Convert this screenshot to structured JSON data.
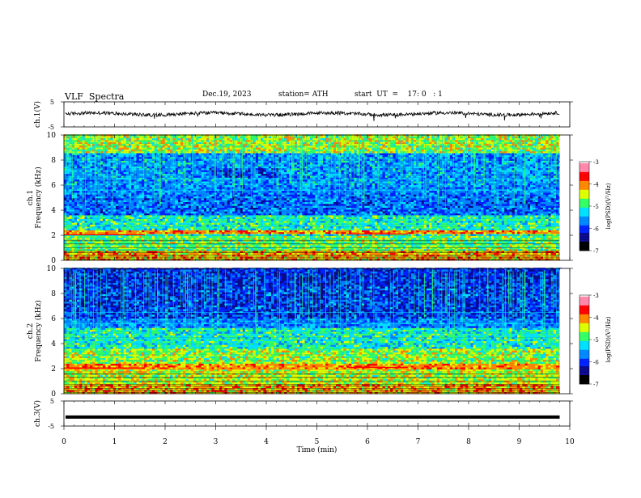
{
  "header": {
    "title": "VLF  Spectra",
    "date": "Dec.19, 2023",
    "station": "station= ATH",
    "start_ut": "start  UT  =    17: 0   : 1"
  },
  "colors": {
    "colormap": [
      "#000000",
      "#0a0a8c",
      "#0022ff",
      "#0088ff",
      "#00e0ff",
      "#33ff66",
      "#ddff00",
      "#ff8800",
      "#ff0000",
      "#ff88aa",
      "#ffffff"
    ]
  },
  "chart_data": [
    {
      "type": "line",
      "panel": "ch1-waveform",
      "ylabel": "ch.1(V)",
      "yticks": [
        "5",
        "-5"
      ],
      "ylim": [
        -5,
        5
      ],
      "xlim": [
        0,
        10
      ],
      "series": [
        {
          "approx_level_V": 0.2,
          "amplitude_V": 1.5,
          "extent_min": 9.8
        }
      ]
    },
    {
      "type": "heatmap",
      "panel": "ch1-spectrogram",
      "ylabel": "ch.1\nFrequency (kHz)",
      "ylabel_lines": [
        "ch.1",
        "Frequency  (kHz)"
      ],
      "yticks": [
        "0",
        "2",
        "4",
        "6",
        "8",
        "10"
      ],
      "ylim": [
        0,
        10
      ],
      "xlim": [
        0,
        10
      ],
      "colorbar": {
        "label": "log(PSD)(V²/Hz)",
        "ticks": [
          "-3",
          "-4",
          "-5",
          "-6",
          "-7"
        ],
        "range": [
          -7,
          -3
        ]
      },
      "features": {
        "band_2khz_strong": [
          2.0,
          2.3
        ],
        "low_band_dark": [
          3.5,
          5.2
        ],
        "upper_noise": [
          6,
          10
        ],
        "data_end_min": 9.8
      }
    },
    {
      "type": "heatmap",
      "panel": "ch2-spectrogram",
      "ylabel": "ch.2\nFrequency (kHz)",
      "ylabel_lines": [
        "ch.2",
        "Frequency  (kHz)"
      ],
      "yticks": [
        "0",
        "2",
        "4",
        "6",
        "8",
        "10"
      ],
      "ylim": [
        0,
        10
      ],
      "xlim": [
        0,
        10
      ],
      "colorbar": {
        "label": "log(PSD)(V²/Hz)",
        "ticks": [
          "-3",
          "-4",
          "-5",
          "-6",
          "-7"
        ],
        "range": [
          -7,
          -3
        ]
      },
      "features": {
        "band_2khz_strong": [
          1.9,
          2.3
        ],
        "data_end_min": 9.8
      }
    },
    {
      "type": "line",
      "panel": "ch3-waveform",
      "ylabel": "ch.3(V)",
      "yticks": [
        "5",
        "-5"
      ],
      "ylim": [
        -5,
        5
      ],
      "xlim": [
        0,
        10
      ],
      "xticks": [
        "0",
        "1",
        "2",
        "3",
        "4",
        "5",
        "6",
        "7",
        "8",
        "9",
        "10"
      ],
      "xlabel": "Time  (min)",
      "series": [
        {
          "level_V": -1.4,
          "extent_min": 9.8
        }
      ]
    }
  ]
}
